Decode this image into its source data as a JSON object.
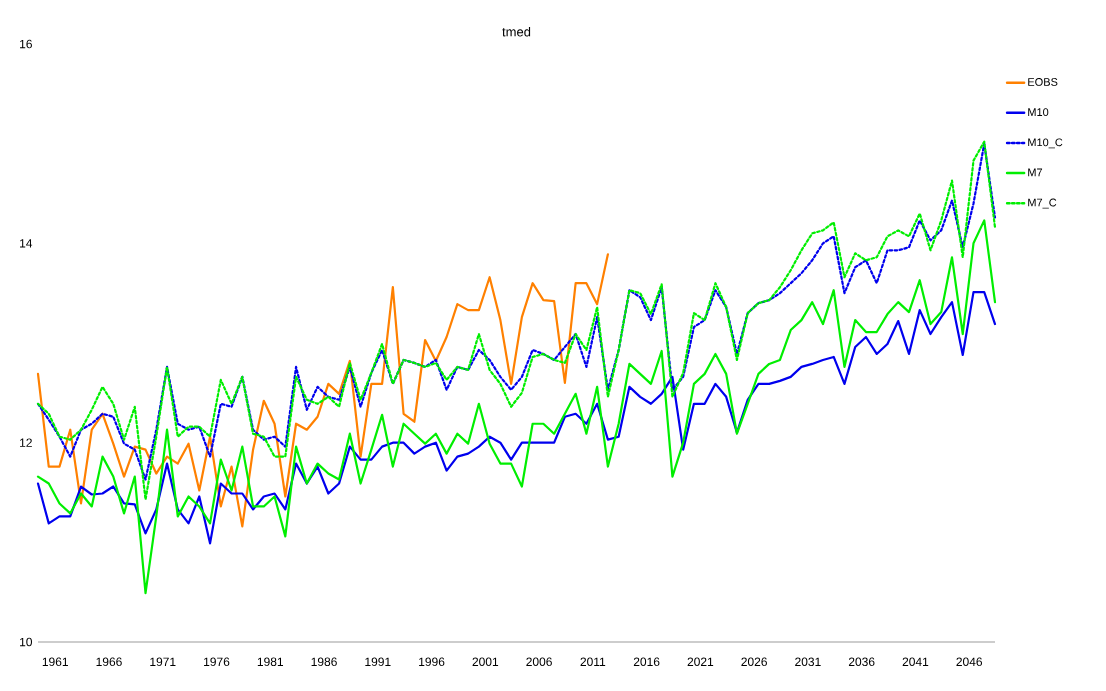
{
  "chart_data": {
    "type": "line",
    "title": "tmed",
    "x": [
      1959.4,
      1960.4,
      1961.4,
      1962.4,
      1963.4,
      1964.4,
      1965.4,
      1966.4,
      1967.4,
      1968.4,
      1969.4,
      1970.4,
      1971.4,
      1972.4,
      1973.4,
      1974.4,
      1975.4,
      1976.4,
      1977.4,
      1978.4,
      1979.4,
      1980.4,
      1981.4,
      1982.4,
      1983.4,
      1984.4,
      1985.4,
      1986.4,
      1987.4,
      1988.4,
      1989.4,
      1990.4,
      1991.4,
      1992.4,
      1993.4,
      1994.4,
      1995.4,
      1996.4,
      1997.4,
      1998.4,
      1999.4,
      2000.4,
      2001.4,
      2002.4,
      2003.4,
      2004.4,
      2005.4,
      2006.4,
      2007.4,
      2008.4,
      2009.4,
      2010.4,
      2011.4,
      2012.4,
      2013.4,
      2014.4,
      2015.4,
      2016.4,
      2017.4,
      2018.4,
      2019.4,
      2020.4,
      2021.4,
      2022.4,
      2023.4,
      2024.4,
      2025.4,
      2026.4,
      2027.4,
      2028.4,
      2029.4,
      2030.4,
      2031.4,
      2032.4,
      2033.4,
      2034.4,
      2035.4,
      2036.4,
      2037.4,
      2038.4,
      2039.4,
      2040.4,
      2041.4,
      2042.4,
      2043.4,
      2044.4,
      2045.4,
      2046.4,
      2047.4,
      2048.4
    ],
    "series": [
      {
        "name": "EOBS",
        "color": "#ff8000",
        "line_style": "solid",
        "x": [
          1959.4,
          1960.4,
          1961.4,
          1962.4,
          1963.4,
          1964.4,
          1965.4,
          1966.4,
          1967.4,
          1968.4,
          1969.4,
          1970.4,
          1971.4,
          1972.4,
          1973.4,
          1974.4,
          1975.4,
          1976.4,
          1977.4,
          1978.4,
          1979.4,
          1980.4,
          1981.4,
          1982.4,
          1983.4,
          1984.4,
          1985.4,
          1986.4,
          1987.4,
          1988.4,
          1989.4,
          1990.4,
          1991.4,
          1992.4,
          1993.4,
          1994.4,
          1995.4,
          1996.4,
          1997.4,
          1998.4,
          1999.4,
          2000.4,
          2001.4,
          2002.4,
          2003.4,
          2004.4,
          2005.4,
          2006.4,
          2007.4,
          2008.4,
          2009.4,
          2010.4,
          2011.4,
          2012.4
        ],
        "values": [
          12.69,
          11.76,
          11.76,
          12.13,
          11.39,
          12.13,
          12.29,
          11.99,
          11.66,
          11.96,
          11.93,
          11.69,
          11.86,
          11.79,
          11.99,
          11.52,
          12.06,
          11.36,
          11.76,
          11.16,
          11.93,
          12.42,
          12.19,
          11.46,
          12.19,
          12.13,
          12.26,
          12.59,
          12.49,
          12.82,
          11.86,
          12.59,
          12.59,
          13.56,
          12.29,
          12.21,
          13.03,
          12.82,
          13.06,
          13.39,
          13.33,
          13.33,
          13.66,
          13.23,
          12.59,
          13.26,
          13.6,
          13.43,
          13.42,
          12.6,
          13.6,
          13.6,
          13.39,
          13.89
        ]
      },
      {
        "name": "M10",
        "color": "#0000ee",
        "line_style": "solid",
        "values": [
          11.59,
          11.19,
          11.26,
          11.26,
          11.56,
          11.48,
          11.49,
          11.56,
          11.39,
          11.38,
          11.09,
          11.33,
          11.79,
          11.33,
          11.19,
          11.46,
          10.99,
          11.59,
          11.49,
          11.49,
          11.33,
          11.46,
          11.49,
          11.33,
          11.79,
          11.59,
          11.76,
          11.49,
          11.59,
          11.96,
          11.83,
          11.83,
          11.96,
          12.0,
          12.0,
          11.89,
          11.96,
          12.0,
          11.72,
          11.86,
          11.89,
          11.96,
          12.06,
          12.0,
          11.83,
          12.0,
          12.0,
          12.0,
          12.0,
          12.26,
          12.29,
          12.19,
          12.39,
          12.03,
          12.06,
          12.56,
          12.46,
          12.39,
          12.49,
          12.66,
          11.93,
          12.39,
          12.39,
          12.59,
          12.46,
          12.1,
          12.43,
          12.59,
          12.59,
          12.62,
          12.66,
          12.76,
          12.79,
          12.83,
          12.86,
          12.59,
          12.96,
          13.06,
          12.89,
          12.99,
          13.22,
          12.89,
          13.33,
          13.09,
          13.26,
          13.41,
          12.88,
          13.51,
          13.51,
          13.19
        ]
      },
      {
        "name": "M10_C",
        "color": "#0000ee",
        "line_style": "dotted",
        "values": [
          12.39,
          12.23,
          12.06,
          11.86,
          12.13,
          12.19,
          12.29,
          12.26,
          11.99,
          11.93,
          11.63,
          12.13,
          12.76,
          12.19,
          12.13,
          12.16,
          11.86,
          12.39,
          12.36,
          12.66,
          12.13,
          12.03,
          12.06,
          11.96,
          12.76,
          12.33,
          12.56,
          12.46,
          12.43,
          12.76,
          12.36,
          12.7,
          12.93,
          12.59,
          12.83,
          12.8,
          12.76,
          12.83,
          12.53,
          12.76,
          12.73,
          12.93,
          12.83,
          12.66,
          12.53,
          12.66,
          12.93,
          12.89,
          12.83,
          12.96,
          13.09,
          12.76,
          13.26,
          12.53,
          12.93,
          13.53,
          13.46,
          13.23,
          13.56,
          12.53,
          12.66,
          13.16,
          13.23,
          13.53,
          13.36,
          12.89,
          13.3,
          13.4,
          13.43,
          13.5,
          13.6,
          13.7,
          13.83,
          14.0,
          14.07,
          13.5,
          13.76,
          13.83,
          13.6,
          13.93,
          13.93,
          13.96,
          14.23,
          14.03,
          14.13,
          14.43,
          13.96,
          14.4,
          15.0,
          14.26
        ]
      },
      {
        "name": "M7",
        "color": "#00ee00",
        "line_style": "solid",
        "values": [
          11.66,
          11.59,
          11.39,
          11.29,
          11.49,
          11.36,
          11.86,
          11.66,
          11.29,
          11.66,
          10.49,
          11.26,
          12.13,
          11.26,
          11.46,
          11.36,
          11.19,
          11.83,
          11.52,
          11.96,
          11.36,
          11.36,
          11.46,
          11.06,
          11.96,
          11.59,
          11.79,
          11.69,
          11.63,
          12.09,
          11.59,
          11.93,
          12.28,
          11.76,
          12.19,
          12.09,
          11.99,
          12.09,
          11.89,
          12.09,
          11.99,
          12.39,
          11.99,
          11.79,
          11.79,
          11.56,
          12.19,
          12.19,
          12.09,
          12.29,
          12.49,
          12.09,
          12.56,
          11.76,
          12.19,
          12.79,
          12.69,
          12.59,
          12.92,
          11.66,
          12.0,
          12.59,
          12.69,
          12.89,
          12.69,
          12.09,
          12.39,
          12.69,
          12.79,
          12.83,
          13.13,
          13.23,
          13.41,
          13.19,
          13.53,
          12.76,
          13.23,
          13.11,
          13.11,
          13.29,
          13.41,
          13.31,
          13.63,
          13.19,
          13.31,
          13.86,
          13.09,
          14.0,
          14.23,
          13.41
        ]
      },
      {
        "name": "M7_C",
        "color": "#00ee00",
        "line_style": "dotted",
        "values": [
          12.39,
          12.29,
          12.06,
          12.03,
          12.13,
          12.33,
          12.56,
          12.39,
          12.03,
          12.36,
          11.43,
          12.06,
          12.76,
          12.06,
          12.16,
          12.16,
          12.06,
          12.63,
          12.39,
          12.66,
          12.09,
          12.06,
          11.86,
          11.86,
          12.66,
          12.43,
          12.39,
          12.46,
          12.36,
          12.8,
          12.43,
          12.7,
          12.99,
          12.59,
          12.83,
          12.8,
          12.76,
          12.8,
          12.63,
          12.76,
          12.73,
          13.09,
          12.73,
          12.59,
          12.36,
          12.5,
          12.86,
          12.89,
          12.83,
          12.8,
          13.09,
          12.93,
          13.36,
          12.46,
          12.93,
          13.53,
          13.5,
          13.29,
          13.59,
          12.46,
          12.7,
          13.3,
          13.23,
          13.6,
          13.36,
          12.83,
          13.3,
          13.4,
          13.43,
          13.56,
          13.73,
          13.93,
          14.1,
          14.13,
          14.21,
          13.66,
          13.9,
          13.83,
          13.86,
          14.07,
          14.13,
          14.07,
          14.3,
          13.93,
          14.23,
          14.63,
          13.86,
          14.83,
          15.02,
          14.16
        ]
      }
    ],
    "xlim": [
      1959.4,
      2048.4
    ],
    "xticks": [
      1961,
      1966,
      1971,
      1976,
      1981,
      1986,
      1991,
      1996,
      2001,
      2006,
      2011,
      2016,
      2021,
      2026,
      2031,
      2036,
      2041,
      2046
    ],
    "ylim": [
      10,
      16
    ],
    "yticks": [
      10,
      12,
      14,
      16
    ],
    "legend": "top right"
  }
}
